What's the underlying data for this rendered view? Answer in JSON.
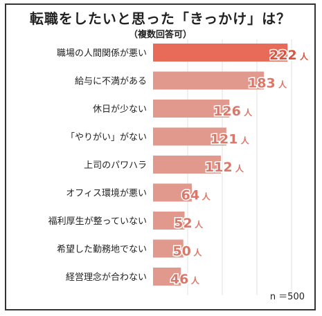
{
  "chart_data": {
    "type": "bar",
    "orientation": "horizontal",
    "title": "転職をしたいと思った「きっかけ」は？",
    "subtitle": "（複数回答可）",
    "categories": [
      "職場の人間関係が悪い",
      "給与に不満がある",
      "休日が少ない",
      "「やりがい」がない",
      "上司のパワハラ",
      "オフィス環境が悪い",
      "福利厚生が整っていない",
      "希望した勤務地でない",
      "経営理念が合わない"
    ],
    "values": [
      222,
      183,
      126,
      121,
      112,
      64,
      52,
      50,
      46
    ],
    "unit": "人",
    "note": "n ＝500",
    "colors": {
      "top_bar": "#e86a58",
      "bar": "#e2998d",
      "top_label": "#d9533e",
      "label": "#d9786a",
      "grid": "#e0e0e0"
    }
  }
}
